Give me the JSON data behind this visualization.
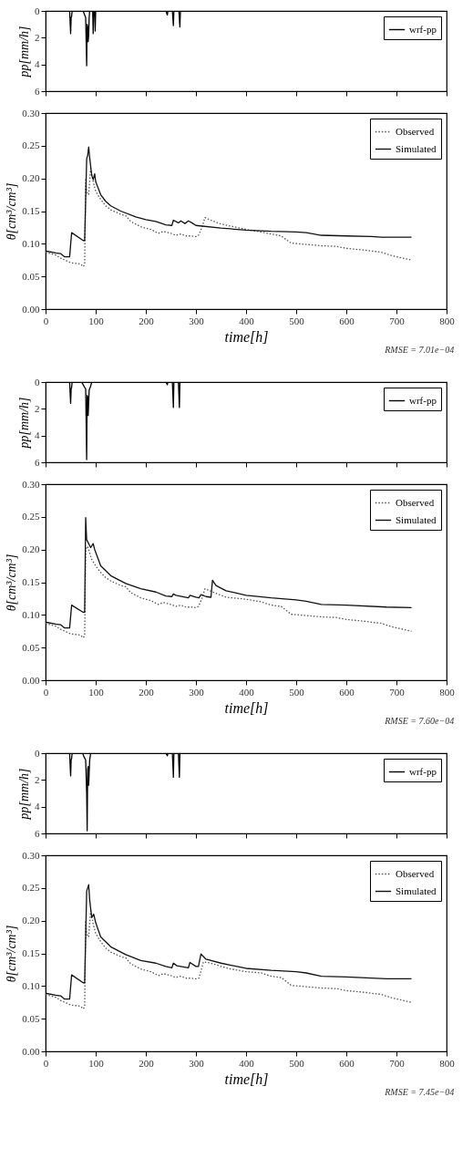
{
  "chart_data": [
    {
      "type": "line",
      "ylabel": "pp[mm/h]",
      "xlim": [
        0,
        800
      ],
      "xticks": [
        0,
        100,
        200,
        300,
        400,
        500,
        600,
        700,
        800
      ],
      "ylim": [
        6,
        0
      ],
      "yticks": [
        0,
        2,
        4,
        6
      ],
      "tick_labels": "y",
      "legend": "top right",
      "series": [
        {
          "name": "wrf-pp",
          "color": "#000000",
          "line_style": "solid",
          "x": [
            0,
            48,
            50,
            51,
            52,
            53,
            55,
            75,
            78,
            80,
            82,
            83,
            84,
            85,
            86,
            87,
            88,
            90,
            92,
            94,
            95,
            96,
            98,
            99,
            100,
            101,
            102,
            240,
            243,
            244,
            253,
            255,
            256,
            266,
            268,
            269,
            730
          ],
          "values": [
            0,
            0,
            1.7,
            0.5,
            0.4,
            0,
            0,
            0,
            0.3,
            0.5,
            4.1,
            1.0,
            1.2,
            2.3,
            1.8,
            0.5,
            0,
            0,
            0,
            0,
            1.7,
            0,
            0,
            1.5,
            0,
            0,
            0,
            0,
            0.3,
            0,
            0,
            1.1,
            0,
            0,
            1.2,
            0,
            0
          ]
        }
      ]
    },
    {
      "type": "line",
      "ylabel": "θ[cm³/cm³]",
      "xlabel": "time[h]",
      "xlim": [
        0,
        800
      ],
      "xticks": [
        0,
        100,
        200,
        300,
        400,
        500,
        600,
        700,
        800
      ],
      "ylim": [
        0,
        0.3
      ],
      "yticks": [
        {
          "value": 0,
          "label": "0.00"
        },
        0.05,
        {
          "value": 0.1,
          "label": "0.10"
        },
        0.15,
        {
          "value": 0.2,
          "label": "0.20"
        },
        0.25,
        {
          "value": 0.3,
          "label": "0.30"
        }
      ],
      "legend": "top right",
      "annotations": [
        "RMSE = 7.01e−04"
      ],
      "series": [
        {
          "name": "Observed",
          "color": "#555555",
          "line_style": "dotted",
          "x": [
            0,
            20,
            30,
            50,
            70,
            75,
            78,
            80,
            82,
            86,
            90,
            95,
            100,
            110,
            120,
            130,
            150,
            160,
            170,
            190,
            210,
            225,
            235,
            250,
            260,
            270,
            280,
            290,
            300,
            305,
            312,
            318,
            330,
            350,
            370,
            400,
            430,
            450,
            470,
            490,
            520,
            550,
            580,
            600,
            640,
            670,
            690,
            730
          ],
          "values": [
            0.087,
            0.083,
            0.078,
            0.071,
            0.069,
            0.065,
            0.068,
            0.2,
            0.18,
            0.175,
            0.215,
            0.195,
            0.18,
            0.168,
            0.158,
            0.152,
            0.145,
            0.143,
            0.134,
            0.126,
            0.122,
            0.116,
            0.119,
            0.116,
            0.113,
            0.115,
            0.112,
            0.112,
            0.111,
            0.113,
            0.125,
            0.14,
            0.136,
            0.13,
            0.127,
            0.122,
            0.118,
            0.115,
            0.112,
            0.101,
            0.099,
            0.097,
            0.096,
            0.093,
            0.09,
            0.087,
            0.082,
            0.075
          ]
        },
        {
          "name": "Simulated",
          "color": "#111111",
          "line_style": "solid",
          "x": [
            0,
            20,
            30,
            38,
            48,
            52,
            75,
            78,
            82,
            84,
            86,
            88,
            92,
            95,
            98,
            100,
            110,
            120,
            130,
            150,
            180,
            200,
            220,
            240,
            252,
            255,
            265,
            270,
            278,
            285,
            292,
            300,
            350,
            400,
            450,
            500,
            520,
            550,
            600,
            650,
            670,
            730
          ],
          "values": [
            0.089,
            0.086,
            0.085,
            0.08,
            0.08,
            0.117,
            0.105,
            0.105,
            0.23,
            0.235,
            0.248,
            0.232,
            0.205,
            0.198,
            0.207,
            0.195,
            0.175,
            0.165,
            0.158,
            0.15,
            0.141,
            0.137,
            0.134,
            0.129,
            0.128,
            0.136,
            0.132,
            0.135,
            0.131,
            0.135,
            0.132,
            0.128,
            0.124,
            0.121,
            0.119,
            0.118,
            0.117,
            0.113,
            0.112,
            0.111,
            0.11,
            0.11
          ]
        }
      ]
    },
    {
      "type": "line",
      "ylabel": "pp[mm/h]",
      "xlim": [
        0,
        800
      ],
      "xticks": [
        0,
        100,
        200,
        300,
        400,
        500,
        600,
        700,
        800
      ],
      "ylim": [
        6,
        0
      ],
      "yticks": [
        0,
        2,
        4,
        6
      ],
      "tick_labels": "y",
      "legend": "top right",
      "series": [
        {
          "name": "wrf-pp",
          "color": "#000000",
          "line_style": "solid",
          "x": [
            0,
            48,
            50,
            51,
            52,
            53,
            55,
            72,
            75,
            78,
            80,
            82,
            83,
            84,
            85,
            86,
            87,
            88,
            90,
            92,
            94,
            240,
            243,
            244,
            253,
            255,
            256,
            265,
            267,
            268,
            730
          ],
          "values": [
            0,
            0,
            1.6,
            0.5,
            0.4,
            0,
            0,
            0,
            0.2,
            0.4,
            0.5,
            5.8,
            1.0,
            1.1,
            2.5,
            1.5,
            0.6,
            0.5,
            0.3,
            0,
            0,
            0,
            0.2,
            0,
            0,
            1.9,
            0,
            0,
            1.9,
            0,
            0
          ]
        }
      ]
    },
    {
      "type": "line",
      "ylabel": "θ[cm³/cm³]",
      "xlabel": "time[h]",
      "xlim": [
        0,
        800
      ],
      "xticks": [
        0,
        100,
        200,
        300,
        400,
        500,
        600,
        700,
        800
      ],
      "ylim": [
        0,
        0.3
      ],
      "yticks": [
        {
          "value": 0,
          "label": "0.00"
        },
        0.05,
        {
          "value": 0.1,
          "label": "0.10"
        },
        0.15,
        {
          "value": 0.2,
          "label": "0.20"
        },
        0.25,
        {
          "value": 0.3,
          "label": "0.30"
        }
      ],
      "legend": "top right",
      "annotations": [
        "RMSE = 7.60e−04"
      ],
      "series": [
        {
          "name": "Observed",
          "color": "#555555",
          "line_style": "dotted",
          "x": [
            0,
            20,
            30,
            50,
            70,
            75,
            78,
            80,
            84,
            88,
            92,
            100,
            110,
            120,
            130,
            150,
            160,
            170,
            190,
            210,
            225,
            235,
            250,
            260,
            270,
            280,
            290,
            300,
            305,
            312,
            318,
            340,
            360,
            400,
            430,
            450,
            470,
            490,
            520,
            550,
            580,
            600,
            640,
            670,
            690,
            730
          ],
          "values": [
            0.087,
            0.083,
            0.078,
            0.071,
            0.069,
            0.065,
            0.068,
            0.2,
            0.205,
            0.195,
            0.185,
            0.175,
            0.165,
            0.157,
            0.152,
            0.145,
            0.143,
            0.134,
            0.126,
            0.122,
            0.116,
            0.119,
            0.116,
            0.113,
            0.115,
            0.112,
            0.112,
            0.111,
            0.113,
            0.125,
            0.14,
            0.133,
            0.127,
            0.124,
            0.12,
            0.115,
            0.113,
            0.101,
            0.099,
            0.097,
            0.096,
            0.093,
            0.09,
            0.087,
            0.082,
            0.075
          ]
        },
        {
          "name": "Simulated",
          "color": "#111111",
          "line_style": "solid",
          "x": [
            0,
            20,
            30,
            38,
            48,
            52,
            75,
            78,
            80,
            82,
            90,
            95,
            98,
            110,
            130,
            160,
            190,
            220,
            240,
            252,
            255,
            260,
            285,
            288,
            300,
            306,
            310,
            320,
            330,
            333,
            340,
            360,
            400,
            450,
            500,
            520,
            550,
            600,
            680,
            730
          ],
          "values": [
            0.089,
            0.086,
            0.085,
            0.08,
            0.08,
            0.115,
            0.104,
            0.104,
            0.249,
            0.215,
            0.203,
            0.209,
            0.2,
            0.175,
            0.16,
            0.148,
            0.14,
            0.135,
            0.129,
            0.128,
            0.132,
            0.13,
            0.126,
            0.13,
            0.127,
            0.126,
            0.131,
            0.128,
            0.127,
            0.153,
            0.145,
            0.137,
            0.13,
            0.126,
            0.123,
            0.121,
            0.116,
            0.115,
            0.112,
            0.111
          ]
        }
      ]
    },
    {
      "type": "line",
      "ylabel": "pp[mm/h]",
      "xlim": [
        0,
        800
      ],
      "xticks": [
        0,
        100,
        200,
        300,
        400,
        500,
        600,
        700,
        800
      ],
      "ylim": [
        6,
        0
      ],
      "yticks": [
        0,
        2,
        4,
        6
      ],
      "tick_labels": "y",
      "legend": "top right",
      "series": [
        {
          "name": "wrf-pp",
          "color": "#000000",
          "line_style": "solid",
          "x": [
            0,
            48,
            50,
            51,
            52,
            53,
            55,
            74,
            77,
            80,
            82,
            83,
            84,
            85,
            86,
            87,
            88,
            90,
            92,
            240,
            243,
            244,
            253,
            255,
            256,
            265,
            267,
            268,
            730
          ],
          "values": [
            0,
            0,
            1.7,
            0.5,
            0.4,
            0,
            0,
            0,
            0.3,
            0.5,
            3.0,
            5.8,
            1.2,
            1.0,
            2.4,
            1.5,
            0.5,
            0,
            0,
            0,
            0.2,
            0,
            0,
            1.8,
            0,
            0,
            1.8,
            0,
            0
          ]
        }
      ]
    },
    {
      "type": "line",
      "ylabel": "θ[cm³/cm³]",
      "xlabel": "time[h]",
      "xlim": [
        0,
        800
      ],
      "xticks": [
        0,
        100,
        200,
        300,
        400,
        500,
        600,
        700,
        800
      ],
      "ylim": [
        0,
        0.3
      ],
      "yticks": [
        {
          "value": 0,
          "label": "0.00"
        },
        0.05,
        {
          "value": 0.1,
          "label": "0.10"
        },
        0.15,
        {
          "value": 0.2,
          "label": "0.20"
        },
        0.25,
        {
          "value": 0.3,
          "label": "0.30"
        }
      ],
      "legend": "top right",
      "annotations": [
        "RMSE = 7.45e−04"
      ],
      "series": [
        {
          "name": "Observed",
          "color": "#555555",
          "line_style": "dotted",
          "x": [
            0,
            20,
            30,
            50,
            70,
            75,
            78,
            80,
            82,
            86,
            90,
            95,
            100,
            110,
            120,
            130,
            150,
            160,
            170,
            190,
            210,
            225,
            235,
            250,
            260,
            270,
            280,
            290,
            300,
            306,
            315,
            330,
            350,
            370,
            400,
            430,
            450,
            470,
            490,
            520,
            550,
            580,
            600,
            640,
            670,
            690,
            730
          ],
          "values": [
            0.087,
            0.083,
            0.078,
            0.071,
            0.069,
            0.065,
            0.068,
            0.2,
            0.18,
            0.175,
            0.215,
            0.195,
            0.18,
            0.168,
            0.158,
            0.152,
            0.145,
            0.143,
            0.134,
            0.126,
            0.122,
            0.116,
            0.119,
            0.116,
            0.113,
            0.115,
            0.112,
            0.112,
            0.111,
            0.112,
            0.137,
            0.135,
            0.13,
            0.126,
            0.122,
            0.12,
            0.115,
            0.113,
            0.101,
            0.099,
            0.097,
            0.096,
            0.093,
            0.09,
            0.087,
            0.082,
            0.075
          ]
        },
        {
          "name": "Simulated",
          "color": "#111111",
          "line_style": "solid",
          "x": [
            0,
            20,
            30,
            38,
            48,
            52,
            75,
            78,
            82,
            84,
            86,
            88,
            92,
            96,
            100,
            110,
            130,
            160,
            190,
            220,
            240,
            252,
            255,
            262,
            285,
            288,
            300,
            305,
            310,
            320,
            350,
            400,
            450,
            500,
            520,
            550,
            600,
            680,
            730
          ],
          "values": [
            0.089,
            0.086,
            0.085,
            0.08,
            0.08,
            0.117,
            0.105,
            0.105,
            0.245,
            0.25,
            0.255,
            0.232,
            0.205,
            0.21,
            0.197,
            0.175,
            0.16,
            0.148,
            0.139,
            0.135,
            0.13,
            0.128,
            0.135,
            0.131,
            0.128,
            0.136,
            0.13,
            0.13,
            0.149,
            0.141,
            0.135,
            0.127,
            0.124,
            0.122,
            0.12,
            0.115,
            0.114,
            0.111,
            0.111
          ]
        }
      ]
    }
  ]
}
